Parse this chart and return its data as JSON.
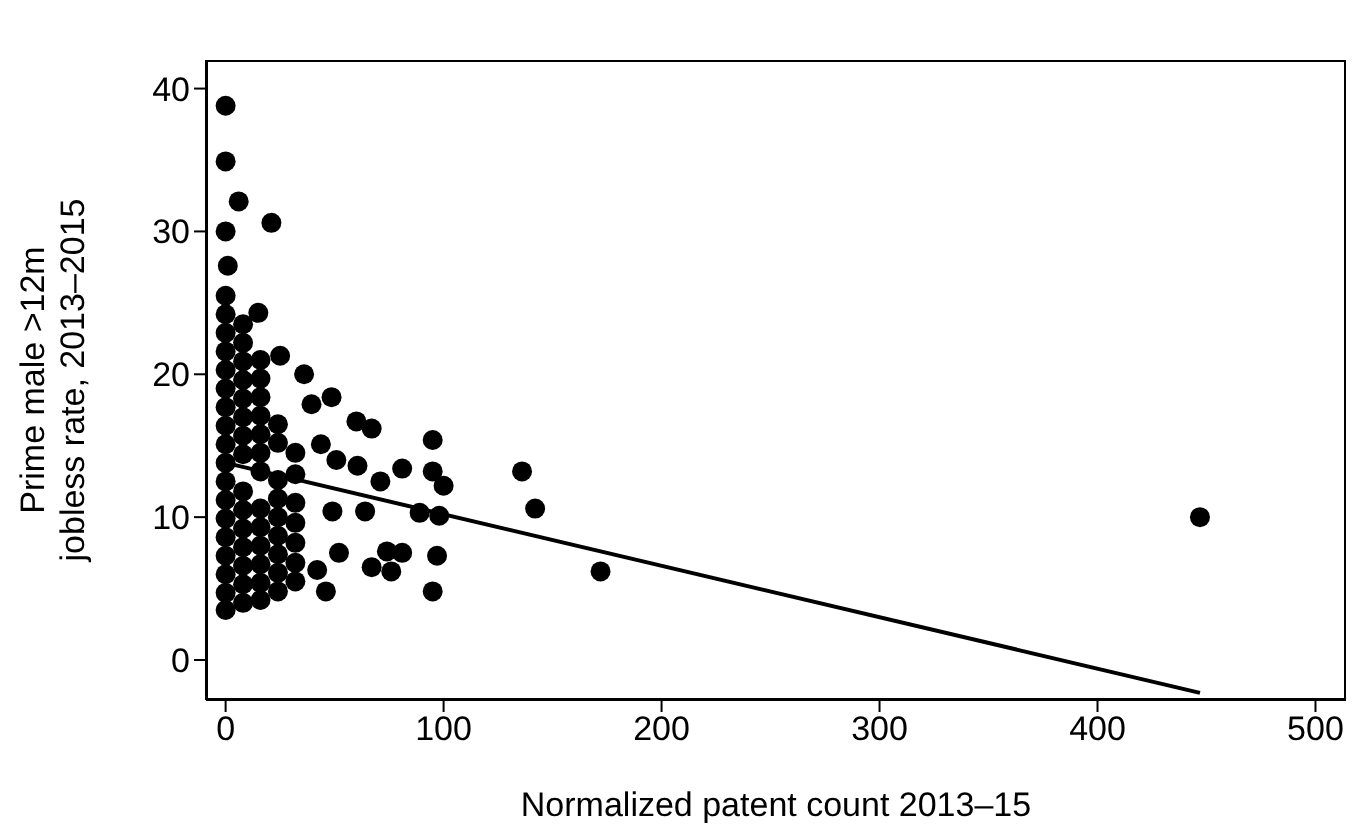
{
  "chart_data": {
    "type": "scatter",
    "xlabel": "Normalized patent count 2013–15",
    "ylabel": "Prime male >12m jobless rate, 2013–2015",
    "xlim": [
      -9,
      514
    ],
    "ylim": [
      -2.8,
      42
    ],
    "xticks": [
      0,
      100,
      200,
      300,
      400,
      500
    ],
    "yticks": [
      0,
      10,
      20,
      30,
      40
    ],
    "grid": false,
    "legend": false,
    "marker": "circle",
    "series": [
      {
        "color": "#000000",
        "x": [
          0,
          0,
          6,
          21,
          0,
          1,
          15,
          25,
          36,
          48.6,
          39.4,
          60,
          67,
          95,
          43.7,
          50.8,
          81,
          95,
          136,
          60.5,
          100,
          71,
          142,
          64,
          89,
          98,
          49,
          52,
          74,
          81,
          67,
          76,
          97,
          42,
          46,
          95,
          172,
          447,
          0,
          0,
          0,
          0,
          0,
          0,
          0,
          0,
          0,
          0,
          0,
          0,
          0,
          0,
          0,
          0,
          0,
          0,
          8,
          8,
          8,
          8,
          8,
          8,
          8,
          8,
          8,
          8,
          8,
          8,
          8,
          8,
          8,
          16,
          16,
          16,
          16,
          16,
          16,
          16,
          16,
          16,
          16,
          16,
          16,
          16,
          24,
          24,
          24,
          24,
          24,
          24,
          24,
          24,
          24,
          32,
          32,
          32,
          32,
          32,
          32,
          32
        ],
        "values": [
          38.8,
          34.9,
          32.1,
          30.6,
          30.0,
          27.6,
          24.3,
          21.3,
          20.0,
          18.4,
          17.9,
          16.7,
          16.2,
          15.4,
          15.1,
          14.0,
          13.4,
          13.2,
          13.2,
          13.6,
          12.2,
          12.5,
          10.6,
          10.4,
          10.3,
          10.1,
          10.4,
          7.5,
          7.6,
          7.5,
          6.5,
          6.2,
          7.3,
          6.3,
          4.8,
          4.8,
          6.2,
          10.0,
          25.5,
          24.2,
          22.9,
          21.6,
          20.3,
          19.0,
          17.7,
          16.4,
          15.1,
          13.8,
          12.5,
          11.2,
          9.9,
          8.6,
          7.3,
          6.0,
          4.7,
          3.5,
          23.5,
          22.2,
          20.9,
          19.6,
          18.3,
          17.0,
          15.7,
          14.4,
          11.8,
          10.5,
          9.2,
          7.9,
          6.6,
          5.3,
          4.0,
          21.0,
          19.7,
          18.4,
          17.1,
          15.8,
          14.5,
          13.2,
          10.6,
          9.3,
          8.0,
          6.7,
          5.4,
          4.2,
          16.5,
          15.2,
          12.6,
          11.3,
          10.0,
          8.7,
          7.4,
          6.1,
          4.8,
          14.5,
          13.0,
          11.0,
          9.6,
          8.2,
          6.8,
          5.5
        ]
      },
      {
        "type": "line",
        "marker": "none",
        "color": "#000000",
        "x": [
          0,
          447
        ],
        "values": [
          13.8,
          -2.3
        ]
      }
    ]
  }
}
